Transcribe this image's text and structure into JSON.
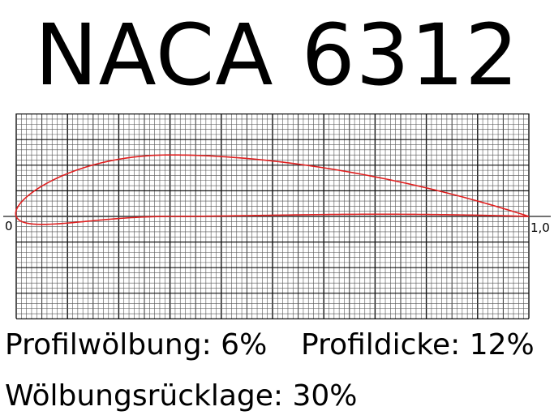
{
  "title": "NACA 6312",
  "axis": {
    "origin_label": "0",
    "end_label": "1,0",
    "x_range": [
      0,
      1
    ],
    "y_range": [
      -0.2,
      0.2
    ]
  },
  "airfoil": {
    "max_camber": 0.06,
    "camber_position": 0.3,
    "thickness": 0.12,
    "color": "#e02020"
  },
  "labels": {
    "camber": "Profilwölbung: 6%",
    "thickness": "Profildicke: 12%",
    "camber_position": "Wölbungsrücklage: 30%"
  }
}
